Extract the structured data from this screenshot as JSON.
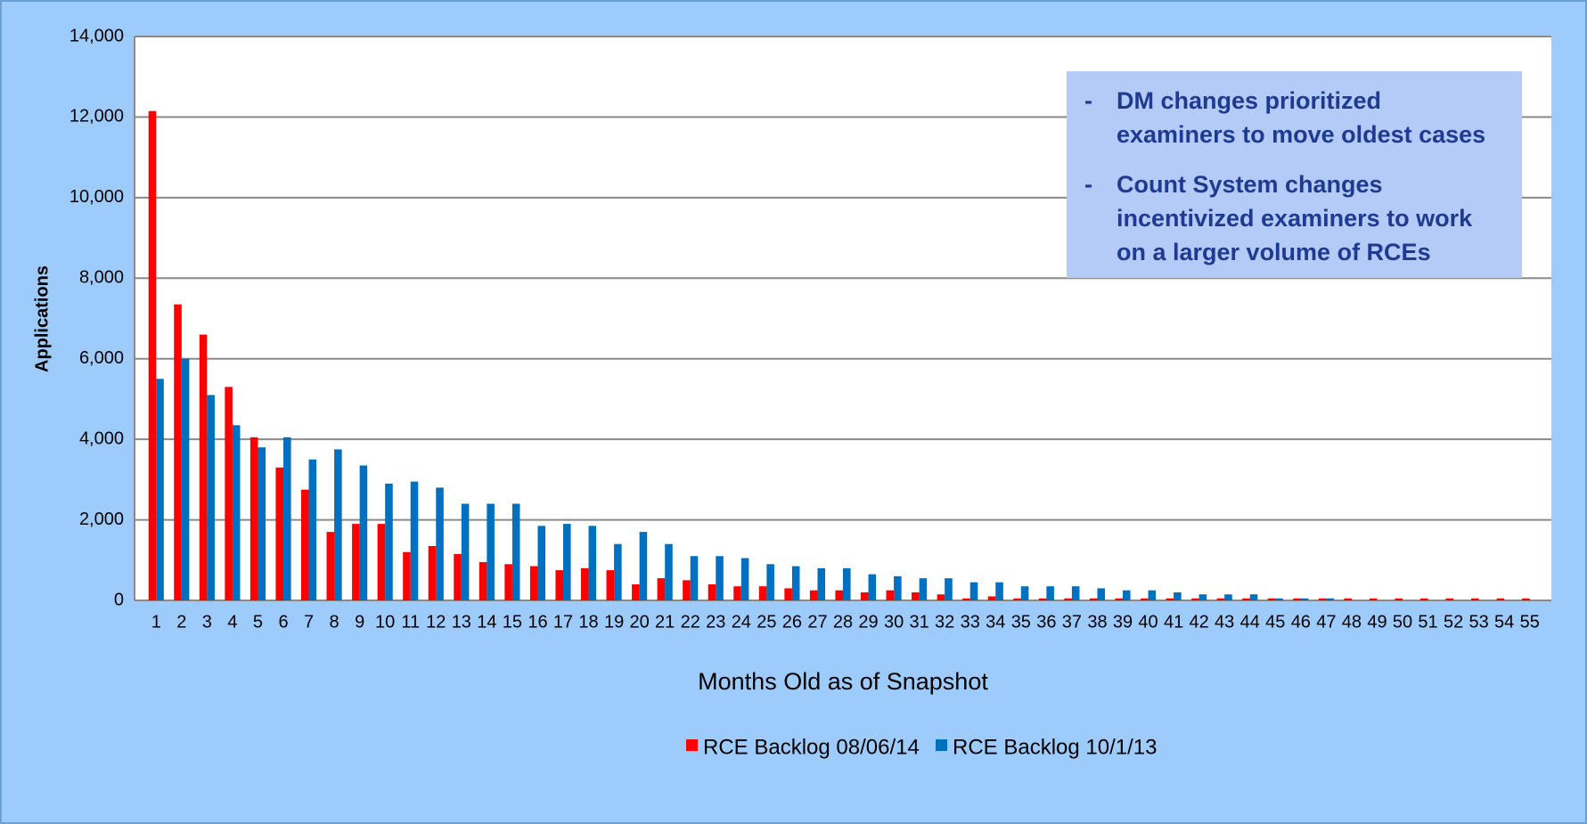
{
  "chart_data": {
    "type": "bar",
    "xlabel": "Months Old as of Snapshot",
    "ylabel": "Applications",
    "categories": [
      1,
      2,
      3,
      4,
      5,
      6,
      7,
      8,
      9,
      10,
      11,
      12,
      13,
      14,
      15,
      16,
      17,
      18,
      19,
      20,
      21,
      22,
      23,
      24,
      25,
      26,
      27,
      28,
      29,
      30,
      31,
      32,
      33,
      34,
      35,
      36,
      37,
      38,
      39,
      40,
      41,
      42,
      43,
      44,
      45,
      46,
      47,
      48,
      49,
      50,
      51,
      52,
      53,
      54,
      55
    ],
    "series": [
      {
        "name": "RCE Backlog 08/06/14",
        "color": "#ff0000",
        "values": [
          12150,
          7350,
          6600,
          5300,
          4050,
          3300,
          2750,
          1700,
          1900,
          1900,
          1200,
          1350,
          1150,
          950,
          900,
          850,
          750,
          800,
          750,
          400,
          550,
          500,
          400,
          350,
          350,
          300,
          250,
          250,
          200,
          250,
          200,
          150,
          50,
          100,
          50,
          50,
          50,
          50,
          50,
          50,
          50,
          50,
          50,
          50,
          50,
          50,
          50,
          50,
          50,
          50,
          50,
          50,
          50,
          50,
          50
        ]
      },
      {
        "name": "RCE Backlog 10/1/13",
        "color": "#0070c0",
        "values": [
          5500,
          6000,
          5100,
          4350,
          3800,
          4050,
          3500,
          3750,
          3350,
          2900,
          2950,
          2800,
          2400,
          2400,
          2400,
          1850,
          1900,
          1850,
          1400,
          1700,
          1400,
          1100,
          1100,
          1050,
          900,
          850,
          800,
          800,
          650,
          600,
          550,
          550,
          450,
          450,
          350,
          350,
          350,
          300,
          250,
          250,
          200,
          150,
          150,
          150,
          50,
          50,
          50,
          0,
          0,
          0,
          0,
          0,
          0,
          0,
          0
        ]
      }
    ],
    "ylim": [
      0,
      14000
    ],
    "yticks": [
      0,
      {
        "value": 2000,
        "label": "2,000"
      },
      {
        "value": 4000,
        "label": "4,000"
      },
      {
        "value": 6000,
        "label": "6,000"
      },
      {
        "value": 8000,
        "label": "8,000"
      },
      {
        "value": 10000,
        "label": "10,000"
      },
      {
        "value": 12000,
        "label": "12,000"
      },
      {
        "value": 14000,
        "label": "14,000"
      }
    ],
    "grid": true,
    "legend": "bottom",
    "annotations": [
      "DM changes prioritized examiners to move oldest cases",
      "Count System changes incentivized examiners to work on a larger volume of RCEs"
    ]
  }
}
